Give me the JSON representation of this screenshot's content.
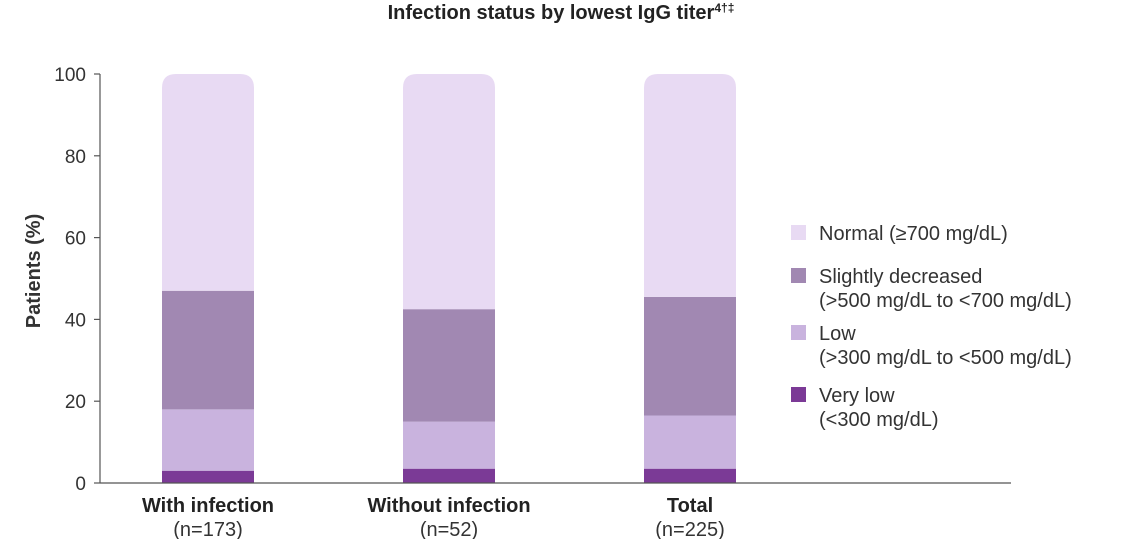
{
  "chart_data": {
    "type": "bar",
    "stacked": true,
    "title": "Infection status by lowest IgG titer",
    "title_superscript": "4†‡",
    "ylabel": "Patients (%)",
    "ylim": [
      0,
      100
    ],
    "yticks": [
      0,
      20,
      40,
      60,
      80,
      100
    ],
    "categories": [
      {
        "label": "With infection",
        "sublabel": "(n=173)"
      },
      {
        "label": "Without infection",
        "sublabel": "(n=52)"
      },
      {
        "label": "Total",
        "sublabel": "(n=225)"
      }
    ],
    "series": [
      {
        "name": "Very low",
        "detail": "(<300 mg/dL)",
        "color": "#7b3a96",
        "values": [
          3,
          3.5,
          3.5
        ]
      },
      {
        "name": "Low",
        "detail": "(>300 mg/dL to <500 mg/dL)",
        "color": "#c9b3de",
        "values": [
          15,
          11.5,
          13
        ]
      },
      {
        "name": "Slightly decreased",
        "detail": "(>500 mg/dL to <700 mg/dL)",
        "color": "#a188b2",
        "values": [
          29,
          27.5,
          29
        ]
      },
      {
        "name": "Normal",
        "detail": "(≥700 mg/dL)",
        "color": "#e8daf3",
        "values": [
          53,
          57.5,
          54.5
        ]
      }
    ],
    "legend": {
      "position": "right",
      "entries": [
        {
          "lines": [
            "Normal (≥700 mg/dL)"
          ],
          "color": "#e8daf3"
        },
        {
          "lines": [
            "Slightly decreased",
            "(>500 mg/dL to <700 mg/dL)"
          ],
          "color": "#a188b2"
        },
        {
          "lines": [
            "Low",
            "(>300 mg/dL to <500 mg/dL)"
          ],
          "color": "#c9b3de"
        },
        {
          "lines": [
            "Very low",
            "(<300 mg/dL)"
          ],
          "color": "#7b3a96"
        }
      ]
    },
    "grid": false
  }
}
